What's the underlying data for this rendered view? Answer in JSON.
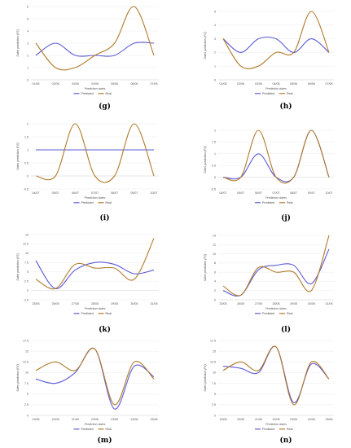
{
  "colors": {
    "predicted": "#5b5bd6",
    "real": "#b07a2a"
  },
  "chart_data": [
    {
      "panel": "(g)",
      "type": "line",
      "x": [
        "01/06",
        "02/06",
        "03/06",
        "04/06",
        "05/06",
        "06/06",
        "07/06"
      ],
      "series": [
        {
          "name": "Predicted",
          "values": [
            2.0,
            3.0,
            2.0,
            2.0,
            2.0,
            3.0,
            3.0
          ]
        },
        {
          "name": "Real",
          "values": [
            3.0,
            1.0,
            1.0,
            2.0,
            3.0,
            6.0,
            2.0
          ]
        }
      ],
      "ylim": [
        0,
        6
      ],
      "yticks": [
        "0",
        "1",
        "2",
        "3",
        "4",
        "5",
        "6"
      ],
      "xlabel": "Prediction dates",
      "ylabel": "Sales prediction (PZ)",
      "legend": [
        "Predicted",
        "Real"
      ],
      "legend_position": "bottom",
      "grid": true
    },
    {
      "panel": "(h)",
      "type": "line",
      "x": [
        "01/06",
        "02/06",
        "03/06",
        "04/06",
        "05/06",
        "06/06",
        "07/06"
      ],
      "series": [
        {
          "name": "Predicted",
          "values": [
            3.0,
            2.0,
            3.0,
            3.0,
            2.0,
            3.0,
            2.0
          ]
        },
        {
          "name": "Real",
          "values": [
            3.0,
            1.0,
            1.0,
            2.0,
            2.0,
            5.0,
            2.0
          ]
        }
      ],
      "ylim": [
        0,
        5
      ],
      "yticks": [
        "0",
        "1",
        "2",
        "3",
        "4",
        "5"
      ],
      "xlabel": "Prediction dates",
      "ylabel": "Sales prediction (PZ)",
      "legend": [
        "Predicted",
        "Real"
      ],
      "legend_position": "bottom",
      "grid": true
    },
    {
      "panel": "(i)",
      "type": "line",
      "x": [
        "04/07",
        "05/07",
        "06/07",
        "07/07",
        "08/07",
        "09/07",
        "10/07"
      ],
      "series": [
        {
          "name": "Predicted",
          "values": [
            1.0,
            1.0,
            1.0,
            1.0,
            1.0,
            1.0,
            1.0
          ]
        },
        {
          "name": "Real",
          "values": [
            0.0,
            0.0,
            2.0,
            0.0,
            0.0,
            2.0,
            0.0
          ]
        }
      ],
      "ylim": [
        -0.5,
        2
      ],
      "yticks": [
        "-0.5",
        "0",
        "0.5",
        "1",
        "1.5",
        "2"
      ],
      "xlabel": "Prediction dates",
      "ylabel": "Sales prediction (PZ)",
      "legend": [
        "Predicted",
        "Real"
      ],
      "legend_position": "bottom",
      "grid": true
    },
    {
      "panel": "(j)",
      "type": "line",
      "x": [
        "04/07",
        "05/07",
        "06/07",
        "07/07",
        "08/07",
        "09/07",
        "10/07"
      ],
      "series": [
        {
          "name": "Predicted",
          "values": [
            0.0,
            0.0,
            1.0,
            0.0,
            0.0,
            2.0,
            0.0
          ]
        },
        {
          "name": "Real",
          "values": [
            0.0,
            0.0,
            2.0,
            0.0,
            0.0,
            2.0,
            0.0
          ]
        }
      ],
      "ylim": [
        -0.5,
        2
      ],
      "yticks": [
        "-0.5",
        "0",
        "0.5",
        "1",
        "1.5",
        "2"
      ],
      "xlabel": "Prediction dates",
      "ylabel": "Sales prediction (PZ)",
      "legend": [
        "Predicted",
        "Real"
      ],
      "legend_position": "bottom",
      "grid": true
    },
    {
      "panel": "(k)",
      "type": "line",
      "x": [
        "25/05",
        "26/05",
        "27/05",
        "28/05",
        "29/05",
        "30/05",
        "31/05"
      ],
      "series": [
        {
          "name": "Predicted",
          "values": [
            8.0,
            0.5,
            5.5,
            7.5,
            7.0,
            4.5,
            5.5
          ]
        },
        {
          "name": "Real",
          "values": [
            3.0,
            0.5,
            7.0,
            6.0,
            6.0,
            3.0,
            14.0
          ]
        }
      ],
      "ylim": [
        -2.5,
        15
      ],
      "yticks": [
        "-2.5",
        "0",
        "2.5",
        "5",
        "7.5",
        "10",
        "12.5",
        "15"
      ],
      "xlabel": "Prediction dates",
      "ylabel": "Sales prediction (PZ)",
      "legend": [
        "Predicted",
        "Real"
      ],
      "legend_position": "bottom",
      "grid": true
    },
    {
      "panel": "(l)",
      "type": "line",
      "x": [
        "25/05",
        "26/05",
        "27/05",
        "28/05",
        "29/05",
        "30/05",
        "31/05"
      ],
      "series": [
        {
          "name": "Predicted",
          "values": [
            2.0,
            1.0,
            6.5,
            7.5,
            7.5,
            3.5,
            11.0
          ]
        },
        {
          "name": "Real",
          "values": [
            3.0,
            1.0,
            7.0,
            6.0,
            6.0,
            2.0,
            14.0
          ]
        }
      ],
      "ylim": [
        0,
        14
      ],
      "yticks": [
        "0",
        "2",
        "4",
        "6",
        "8",
        "10",
        "12",
        "14"
      ],
      "xlabel": "Prediction dates",
      "ylabel": "Sales prediction (PZ)",
      "legend": [
        "Predicted",
        "Real"
      ],
      "legend_position": "bottom",
      "grid": true
    },
    {
      "panel": "(m)",
      "type": "line",
      "x": [
        "19/06",
        "20/06",
        "21/06",
        "22/06",
        "23/06",
        "24/06",
        "25/06"
      ],
      "series": [
        {
          "name": "Predicted",
          "values": [
            8.5,
            7.5,
            10.0,
            15.5,
            1.5,
            11.5,
            9.0
          ]
        },
        {
          "name": "Real",
          "values": [
            10.5,
            12.5,
            10.5,
            15.5,
            2.5,
            12.5,
            8.5
          ]
        }
      ],
      "ylim": [
        0,
        17.5
      ],
      "yticks": [
        "0",
        "2.5",
        "5",
        "7.5",
        "10",
        "12.5",
        "15",
        "17.5"
      ],
      "xlabel": "Prediction dates",
      "ylabel": "Sales prediction (PZ)",
      "legend": [
        "Predicted",
        "Real"
      ],
      "legend_position": "bottom",
      "grid": true
    },
    {
      "panel": "(n)",
      "type": "line",
      "x": [
        "19/06",
        "20/06",
        "21/06",
        "22/06",
        "23/06",
        "24/06",
        "25/06"
      ],
      "series": [
        {
          "name": "Predicted",
          "values": [
            11.5,
            11.0,
            10.0,
            16.0,
            3.0,
            12.0,
            8.5
          ]
        },
        {
          "name": "Real",
          "values": [
            10.5,
            12.5,
            10.5,
            16.0,
            2.5,
            12.5,
            8.5
          ]
        }
      ],
      "ylim": [
        0,
        17.5
      ],
      "yticks": [
        "0",
        "2.5",
        "5",
        "7.5",
        "10",
        "12.5",
        "15",
        "17.5"
      ],
      "xlabel": "Prediction dates",
      "ylabel": "Sales prediction (PZ)",
      "legend": [
        "Predicted",
        "Real"
      ],
      "legend_position": "bottom",
      "grid": true
    }
  ]
}
